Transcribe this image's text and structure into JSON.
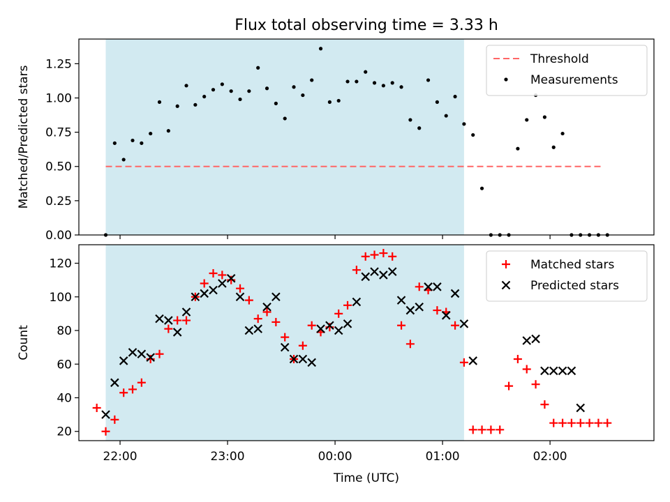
{
  "title": "Flux total observing time = 3.33 h",
  "colors": {
    "threshold": "#ff6666",
    "measurements": "#000000",
    "matched": "#ff0000",
    "predicted": "#000000",
    "shade": "#add8e6"
  },
  "chart_data": [
    {
      "type": "scatter",
      "ylabel": "Matched/Predicted stars",
      "ylim": [
        0,
        1.43
      ],
      "yticks": [
        0,
        0.25,
        0.5,
        0.75,
        1.0,
        1.25
      ],
      "ytick_labels": [
        "0.00",
        "0.25",
        "0.50",
        "0.75",
        "1.00",
        "1.25"
      ],
      "xlim": [
        "21:37",
        "02:58"
      ],
      "xticks": [
        "22:00",
        "23:00",
        "00:00",
        "01:00",
        "02:00"
      ],
      "shaded_span": [
        "21:52",
        "01:12"
      ],
      "threshold": {
        "name": "Threshold",
        "y": 0.5,
        "x_range": [
          "21:52",
          "02:30"
        ],
        "style": "dashed"
      },
      "legend": {
        "position": "top-right",
        "entries": [
          "Threshold",
          "Measurements"
        ]
      },
      "series": [
        {
          "name": "Measurements",
          "marker": "dot",
          "points": [
            [
              "21:52",
              0.0
            ],
            [
              "21:57",
              0.67
            ],
            [
              "22:02",
              0.55
            ],
            [
              "22:07",
              0.69
            ],
            [
              "22:12",
              0.67
            ],
            [
              "22:17",
              0.74
            ],
            [
              "22:22",
              0.97
            ],
            [
              "22:27",
              0.76
            ],
            [
              "22:32",
              0.94
            ],
            [
              "22:37",
              1.09
            ],
            [
              "22:42",
              0.95
            ],
            [
              "22:47",
              1.01
            ],
            [
              "22:52",
              1.06
            ],
            [
              "22:57",
              1.1
            ],
            [
              "23:02",
              1.05
            ],
            [
              "23:07",
              0.99
            ],
            [
              "23:12",
              1.05
            ],
            [
              "23:17",
              1.22
            ],
            [
              "23:22",
              1.07
            ],
            [
              "23:27",
              0.96
            ],
            [
              "23:32",
              0.85
            ],
            [
              "23:37",
              1.08
            ],
            [
              "23:42",
              1.02
            ],
            [
              "23:47",
              1.13
            ],
            [
              "23:52",
              1.36
            ],
            [
              "23:57",
              0.97
            ],
            [
              "00:02",
              0.98
            ],
            [
              "00:07",
              1.12
            ],
            [
              "00:12",
              1.12
            ],
            [
              "00:17",
              1.19
            ],
            [
              "00:22",
              1.11
            ],
            [
              "00:27",
              1.09
            ],
            [
              "00:32",
              1.11
            ],
            [
              "00:37",
              1.08
            ],
            [
              "00:42",
              0.84
            ],
            [
              "00:47",
              0.78
            ],
            [
              "00:52",
              1.13
            ],
            [
              "00:57",
              0.97
            ],
            [
              "01:02",
              0.87
            ],
            [
              "01:07",
              1.01
            ],
            [
              "01:12",
              0.81
            ],
            [
              "01:17",
              0.73
            ],
            [
              "01:22",
              0.34
            ],
            [
              "01:27",
              0.0
            ],
            [
              "01:32",
              0.0
            ],
            [
              "01:37",
              0.0
            ],
            [
              "01:42",
              0.63
            ],
            [
              "01:47",
              0.84
            ],
            [
              "01:52",
              1.02
            ],
            [
              "01:57",
              0.86
            ],
            [
              "02:02",
              0.64
            ],
            [
              "02:07",
              0.74
            ],
            [
              "02:12",
              0.0
            ],
            [
              "02:17",
              0.0
            ],
            [
              "02:22",
              0.0
            ],
            [
              "02:27",
              0.0
            ],
            [
              "02:32",
              0.0
            ]
          ]
        }
      ]
    },
    {
      "type": "scatter",
      "ylabel": "Count",
      "xlabel": "Time (UTC)",
      "ylim": [
        14.5,
        131
      ],
      "yticks": [
        20,
        40,
        60,
        80,
        100,
        120
      ],
      "ytick_labels": [
        "20",
        "40",
        "60",
        "80",
        "100",
        "120"
      ],
      "xlim": [
        "21:37",
        "02:58"
      ],
      "xticks": [
        "22:00",
        "23:00",
        "00:00",
        "01:00",
        "02:00"
      ],
      "xtick_labels": [
        "22:00",
        "23:00",
        "00:00",
        "01:00",
        "02:00"
      ],
      "shaded_span": [
        "21:52",
        "01:12"
      ],
      "legend": {
        "position": "top-right",
        "entries": [
          "Matched stars",
          "Predicted stars"
        ]
      },
      "series": [
        {
          "name": "Matched stars",
          "marker": "plus",
          "points": [
            [
              "21:47",
              34
            ],
            [
              "21:52",
              20
            ],
            [
              "21:57",
              27
            ],
            [
              "22:02",
              43
            ],
            [
              "22:07",
              45
            ],
            [
              "22:12",
              49
            ],
            [
              "22:17",
              63
            ],
            [
              "22:22",
              66
            ],
            [
              "22:27",
              81
            ],
            [
              "22:32",
              86
            ],
            [
              "22:37",
              86
            ],
            [
              "22:42",
              100
            ],
            [
              "22:47",
              108
            ],
            [
              "22:52",
              114
            ],
            [
              "22:57",
              113
            ],
            [
              "23:02",
              110
            ],
            [
              "23:07",
              105
            ],
            [
              "23:12",
              98
            ],
            [
              "23:17",
              87
            ],
            [
              "23:22",
              91
            ],
            [
              "23:27",
              85
            ],
            [
              "23:32",
              76
            ],
            [
              "23:37",
              63
            ],
            [
              "23:42",
              71
            ],
            [
              "23:47",
              83
            ],
            [
              "23:52",
              79
            ],
            [
              "23:57",
              82
            ],
            [
              "00:02",
              90
            ],
            [
              "00:07",
              95
            ],
            [
              "00:12",
              116
            ],
            [
              "00:17",
              124
            ],
            [
              "00:22",
              125
            ],
            [
              "00:27",
              126
            ],
            [
              "00:32",
              124
            ],
            [
              "00:37",
              83
            ],
            [
              "00:42",
              72
            ],
            [
              "00:47",
              106
            ],
            [
              "00:52",
              104
            ],
            [
              "00:57",
              92
            ],
            [
              "01:02",
              91
            ],
            [
              "01:07",
              83
            ],
            [
              "01:12",
              61
            ],
            [
              "01:17",
              21
            ],
            [
              "01:22",
              21
            ],
            [
              "01:27",
              21
            ],
            [
              "01:32",
              21
            ],
            [
              "01:37",
              47
            ],
            [
              "01:42",
              63
            ],
            [
              "01:47",
              57
            ],
            [
              "01:52",
              48
            ],
            [
              "01:57",
              36
            ],
            [
              "02:02",
              25
            ],
            [
              "02:07",
              25
            ],
            [
              "02:12",
              25
            ],
            [
              "02:17",
              25
            ],
            [
              "02:22",
              25
            ],
            [
              "02:27",
              25
            ],
            [
              "02:32",
              25
            ]
          ]
        },
        {
          "name": "Predicted stars",
          "marker": "x",
          "points": [
            [
              "21:52",
              30
            ],
            [
              "21:57",
              49
            ],
            [
              "22:02",
              62
            ],
            [
              "22:07",
              67
            ],
            [
              "22:12",
              66
            ],
            [
              "22:17",
              64
            ],
            [
              "22:22",
              87
            ],
            [
              "22:27",
              86
            ],
            [
              "22:32",
              79
            ],
            [
              "22:37",
              91
            ],
            [
              "22:42",
              100
            ],
            [
              "22:47",
              102
            ],
            [
              "22:52",
              104
            ],
            [
              "22:57",
              108
            ],
            [
              "23:02",
              111
            ],
            [
              "23:07",
              100
            ],
            [
              "23:12",
              80
            ],
            [
              "23:17",
              81
            ],
            [
              "23:22",
              94
            ],
            [
              "23:27",
              100
            ],
            [
              "23:32",
              70
            ],
            [
              "23:37",
              63
            ],
            [
              "23:42",
              63
            ],
            [
              "23:47",
              61
            ],
            [
              "23:52",
              81
            ],
            [
              "23:57",
              83
            ],
            [
              "00:02",
              80
            ],
            [
              "00:07",
              84
            ],
            [
              "00:12",
              97
            ],
            [
              "00:17",
              112
            ],
            [
              "00:22",
              115
            ],
            [
              "00:27",
              113
            ],
            [
              "00:32",
              115
            ],
            [
              "00:37",
              98
            ],
            [
              "00:42",
              92
            ],
            [
              "00:47",
              94
            ],
            [
              "00:52",
              106
            ],
            [
              "00:57",
              106
            ],
            [
              "01:02",
              89
            ],
            [
              "01:07",
              102
            ],
            [
              "01:12",
              84
            ],
            [
              "01:17",
              62
            ],
            [
              "01:47",
              74
            ],
            [
              "01:52",
              75
            ],
            [
              "01:57",
              56
            ],
            [
              "02:02",
              56
            ],
            [
              "02:07",
              56
            ],
            [
              "02:12",
              56
            ],
            [
              "02:17",
              34
            ]
          ]
        }
      ]
    }
  ]
}
